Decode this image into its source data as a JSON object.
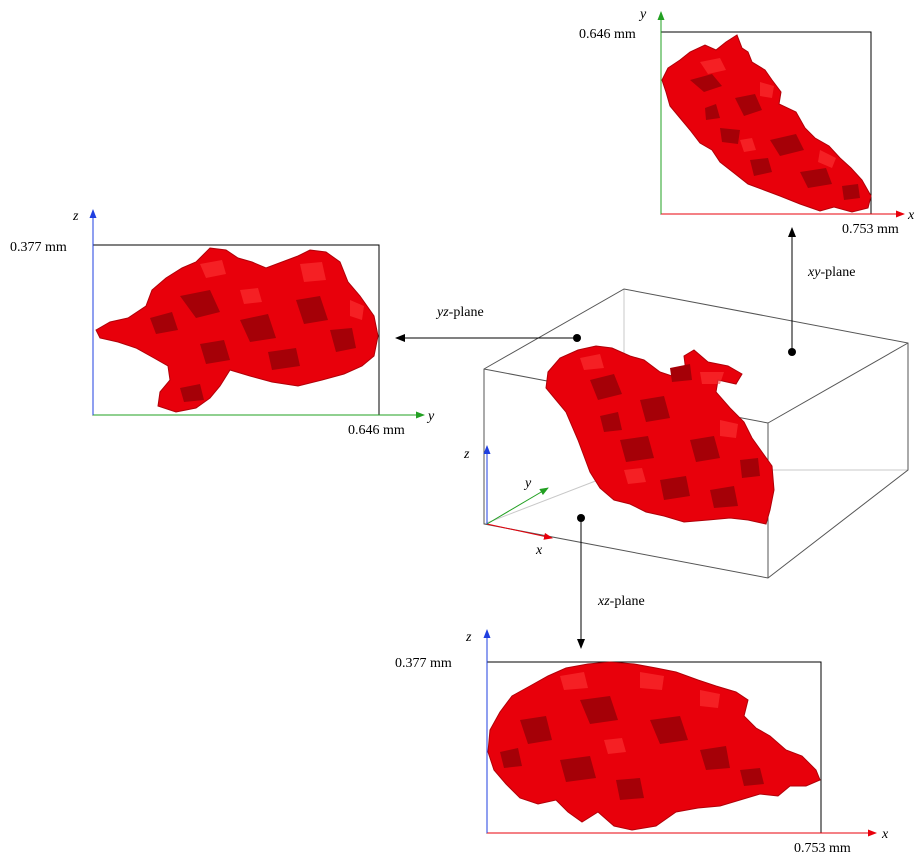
{
  "planes": {
    "xy": {
      "axis_h": "x",
      "axis_v": "y",
      "h_extent": "0.753 mm",
      "v_extent": "0.646 mm",
      "label_axes": "xy",
      "label_suffix": "-plane"
    },
    "yz": {
      "axis_h": "y",
      "axis_v": "z",
      "h_extent": "0.646 mm",
      "v_extent": "0.377 mm",
      "label_axes": "yz",
      "label_suffix": "-plane"
    },
    "xz": {
      "axis_h": "x",
      "axis_v": "z",
      "h_extent": "0.753 mm",
      "v_extent": "0.377 mm",
      "label_axes": "xz",
      "label_suffix": "-plane"
    }
  },
  "volume_axes": {
    "x": "x",
    "y": "y",
    "z": "z"
  },
  "colors": {
    "body": "#e8000b",
    "body_dark": "#9c0006",
    "axis_x": "#e8000b",
    "axis_y": "#22a022",
    "axis_z": "#1f3fe0",
    "box": "#555555"
  }
}
